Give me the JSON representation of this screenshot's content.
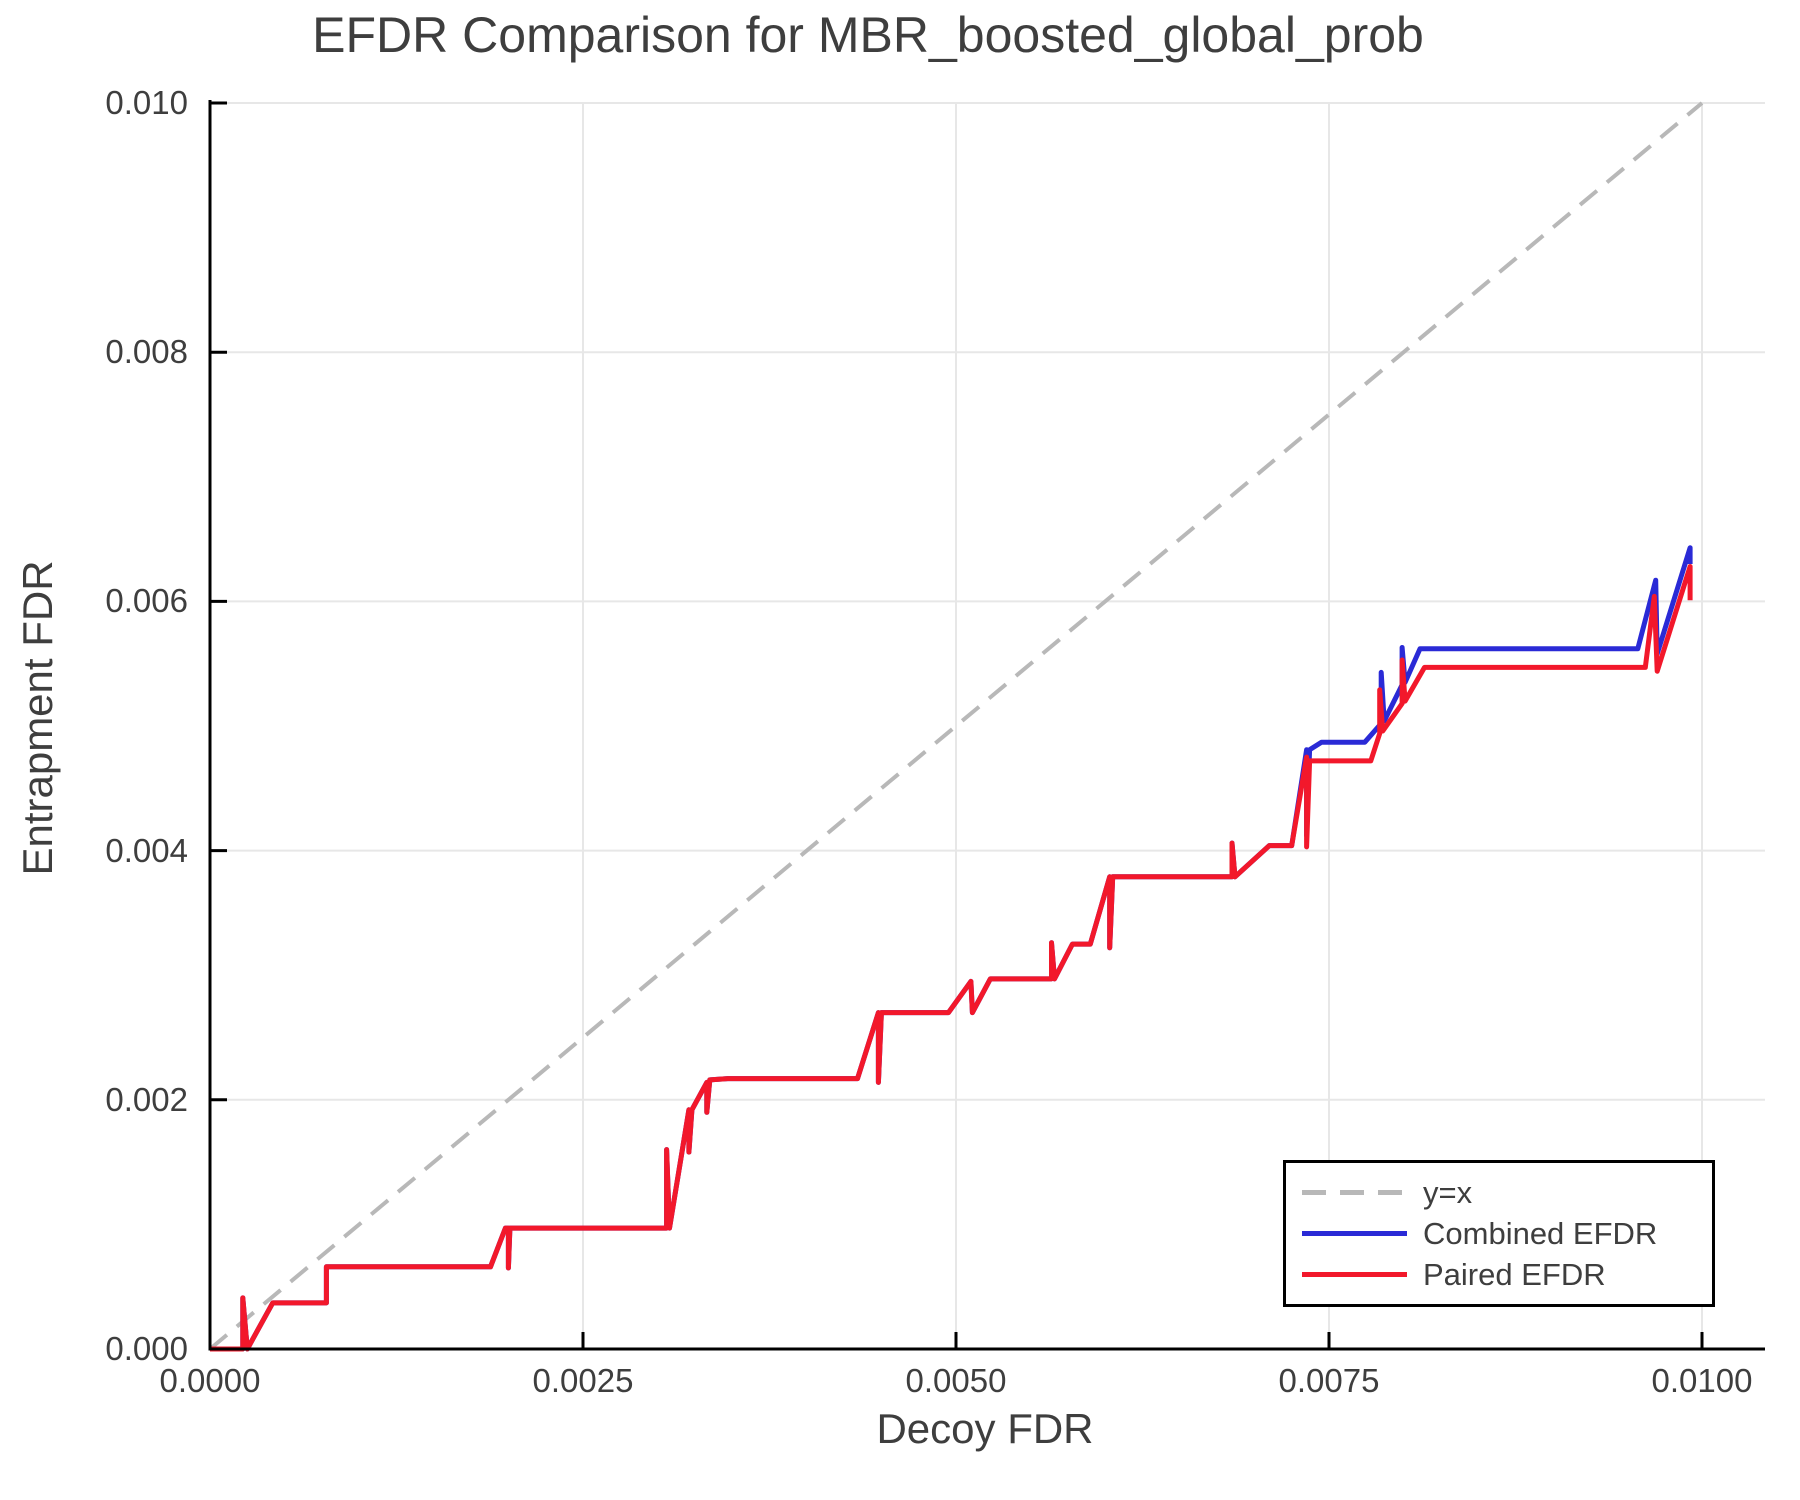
{
  "title": "EFDR Comparison for MBR_boosted_global_prob",
  "axes": {
    "x": {
      "label": "Decoy FDR",
      "tick_labels": [
        "0.0000",
        "0.0025",
        "0.0050",
        "0.0075",
        "0.0100"
      ],
      "tick_values": [
        0,
        0.0025,
        0.005,
        0.0075,
        0.01
      ],
      "range": [
        0,
        0.01
      ]
    },
    "y": {
      "label": "Entrapment FDR",
      "tick_labels": [
        "0.000",
        "0.002",
        "0.004",
        "0.006",
        "0.008",
        "0.010"
      ],
      "tick_values": [
        0,
        0.002,
        0.004,
        0.006,
        0.008,
        0.01
      ],
      "range": [
        0,
        0.01
      ]
    }
  },
  "legend": {
    "items": [
      {
        "label": "y=x",
        "color": "#b8b8b8",
        "dashed": true
      },
      {
        "label": "Combined EFDR",
        "color": "#2a2ad6",
        "dashed": false
      },
      {
        "label": "Paired EFDR",
        "color": "#f2182b",
        "dashed": false
      }
    ]
  },
  "colors": {
    "grid": "#e7e7e7",
    "axis": "#000000",
    "text": "#3e3e3e",
    "reference": "#b8b8b8",
    "combined": "#2a2ad6",
    "paired": "#f2182b"
  },
  "chart_data": {
    "type": "line",
    "title": "EFDR Comparison for MBR_boosted_global_prob",
    "xlabel": "Decoy FDR",
    "ylabel": "Entrapment FDR",
    "xlim": [
      0,
      0.01
    ],
    "ylim": [
      0,
      0.01
    ],
    "grid": true,
    "legend_position": "lower right",
    "xticks": [
      0,
      0.0025,
      0.005,
      0.0075,
      0.01
    ],
    "yticks": [
      0,
      0.002,
      0.004,
      0.006,
      0.008,
      0.01
    ],
    "series": [
      {
        "name": "y=x",
        "color": "#b8b8b8",
        "style": "dashed",
        "width": 4,
        "points": [
          [
            0,
            0
          ],
          [
            0.01,
            0.01
          ]
        ]
      },
      {
        "name": "Combined EFDR",
        "color": "#2a2ad6",
        "style": "solid",
        "width": 5,
        "points": [
          [
            0.0,
            0.0
          ],
          [
            0.00022,
            0.0
          ],
          [
            0.00022,
            0.00041
          ],
          [
            0.00025,
            0.0
          ],
          [
            0.00042,
            0.00037
          ],
          [
            0.00078,
            0.00037
          ],
          [
            0.00078,
            0.00066
          ],
          [
            0.00188,
            0.00066
          ],
          [
            0.00198,
            0.00097
          ],
          [
            0.002,
            0.00097
          ],
          [
            0.002,
            0.00065
          ],
          [
            0.00201,
            0.00097
          ],
          [
            0.00306,
            0.00097
          ],
          [
            0.00306,
            0.0016
          ],
          [
            0.00308,
            0.00097
          ],
          [
            0.00321,
            0.00192
          ],
          [
            0.00321,
            0.00158
          ],
          [
            0.00323,
            0.00192
          ],
          [
            0.00333,
            0.00214
          ],
          [
            0.00333,
            0.0019
          ],
          [
            0.00335,
            0.00216
          ],
          [
            0.00347,
            0.00217
          ],
          [
            0.00434,
            0.00217
          ],
          [
            0.00448,
            0.0027
          ],
          [
            0.00448,
            0.00214
          ],
          [
            0.0045,
            0.0027
          ],
          [
            0.00495,
            0.0027
          ],
          [
            0.0051,
            0.00295
          ],
          [
            0.00511,
            0.0027
          ],
          [
            0.00523,
            0.00297
          ],
          [
            0.00564,
            0.00297
          ],
          [
            0.00564,
            0.00326
          ],
          [
            0.00566,
            0.00297
          ],
          [
            0.00578,
            0.00325
          ],
          [
            0.0059,
            0.00325
          ],
          [
            0.00603,
            0.00379
          ],
          [
            0.00603,
            0.00322
          ],
          [
            0.00605,
            0.00379
          ],
          [
            0.00685,
            0.00379
          ],
          [
            0.00685,
            0.00406
          ],
          [
            0.00687,
            0.00379
          ],
          [
            0.0071,
            0.00404
          ],
          [
            0.00725,
            0.00404
          ],
          [
            0.00735,
            0.00481
          ],
          [
            0.00735,
            0.00412
          ],
          [
            0.00737,
            0.00481
          ],
          [
            0.00745,
            0.00487
          ],
          [
            0.00774,
            0.00487
          ],
          [
            0.00785,
            0.00502
          ],
          [
            0.00785,
            0.00543
          ],
          [
            0.00787,
            0.00504
          ],
          [
            0.00799,
            0.00533
          ],
          [
            0.00799,
            0.00563
          ],
          [
            0.00801,
            0.00535
          ],
          [
            0.00811,
            0.00562
          ],
          [
            0.00957,
            0.00562
          ],
          [
            0.00969,
            0.00617
          ],
          [
            0.0097,
            0.00558
          ],
          [
            0.00992,
            0.00643
          ],
          [
            0.00992,
            0.0063
          ]
        ]
      },
      {
        "name": "Paired EFDR",
        "color": "#f2182b",
        "style": "solid",
        "width": 5,
        "points": [
          [
            0.0,
            0.0
          ],
          [
            0.00022,
            0.0
          ],
          [
            0.00022,
            0.00041
          ],
          [
            0.00025,
            0.0
          ],
          [
            0.00042,
            0.00037
          ],
          [
            0.00078,
            0.00037
          ],
          [
            0.00078,
            0.00066
          ],
          [
            0.00188,
            0.00066
          ],
          [
            0.00198,
            0.00097
          ],
          [
            0.002,
            0.00097
          ],
          [
            0.002,
            0.00065
          ],
          [
            0.00201,
            0.00097
          ],
          [
            0.00306,
            0.00097
          ],
          [
            0.00306,
            0.0016
          ],
          [
            0.00308,
            0.00097
          ],
          [
            0.00321,
            0.00192
          ],
          [
            0.00321,
            0.00158
          ],
          [
            0.00323,
            0.00192
          ],
          [
            0.00333,
            0.00214
          ],
          [
            0.00333,
            0.0019
          ],
          [
            0.00335,
            0.00216
          ],
          [
            0.00347,
            0.00217
          ],
          [
            0.00434,
            0.00217
          ],
          [
            0.00448,
            0.0027
          ],
          [
            0.00448,
            0.00214
          ],
          [
            0.0045,
            0.0027
          ],
          [
            0.00495,
            0.0027
          ],
          [
            0.0051,
            0.00295
          ],
          [
            0.00511,
            0.0027
          ],
          [
            0.00523,
            0.00297
          ],
          [
            0.00564,
            0.00297
          ],
          [
            0.00564,
            0.00326
          ],
          [
            0.00566,
            0.00297
          ],
          [
            0.00578,
            0.00325
          ],
          [
            0.0059,
            0.00325
          ],
          [
            0.00603,
            0.00379
          ],
          [
            0.00603,
            0.00322
          ],
          [
            0.00605,
            0.00379
          ],
          [
            0.00685,
            0.00379
          ],
          [
            0.00685,
            0.00406
          ],
          [
            0.00687,
            0.00379
          ],
          [
            0.0071,
            0.00404
          ],
          [
            0.00725,
            0.00404
          ],
          [
            0.00735,
            0.00475
          ],
          [
            0.00735,
            0.00403
          ],
          [
            0.00737,
            0.00472
          ],
          [
            0.00742,
            0.00472
          ],
          [
            0.00778,
            0.00472
          ],
          [
            0.00784,
            0.00494
          ],
          [
            0.00784,
            0.00529
          ],
          [
            0.00786,
            0.00496
          ],
          [
            0.00799,
            0.00518
          ],
          [
            0.00799,
            0.00553
          ],
          [
            0.00801,
            0.0052
          ],
          [
            0.00814,
            0.00547
          ],
          [
            0.00962,
            0.00547
          ],
          [
            0.00968,
            0.00604
          ],
          [
            0.0097,
            0.00544
          ],
          [
            0.00992,
            0.00628
          ],
          [
            0.00992,
            0.00601
          ]
        ]
      }
    ]
  }
}
